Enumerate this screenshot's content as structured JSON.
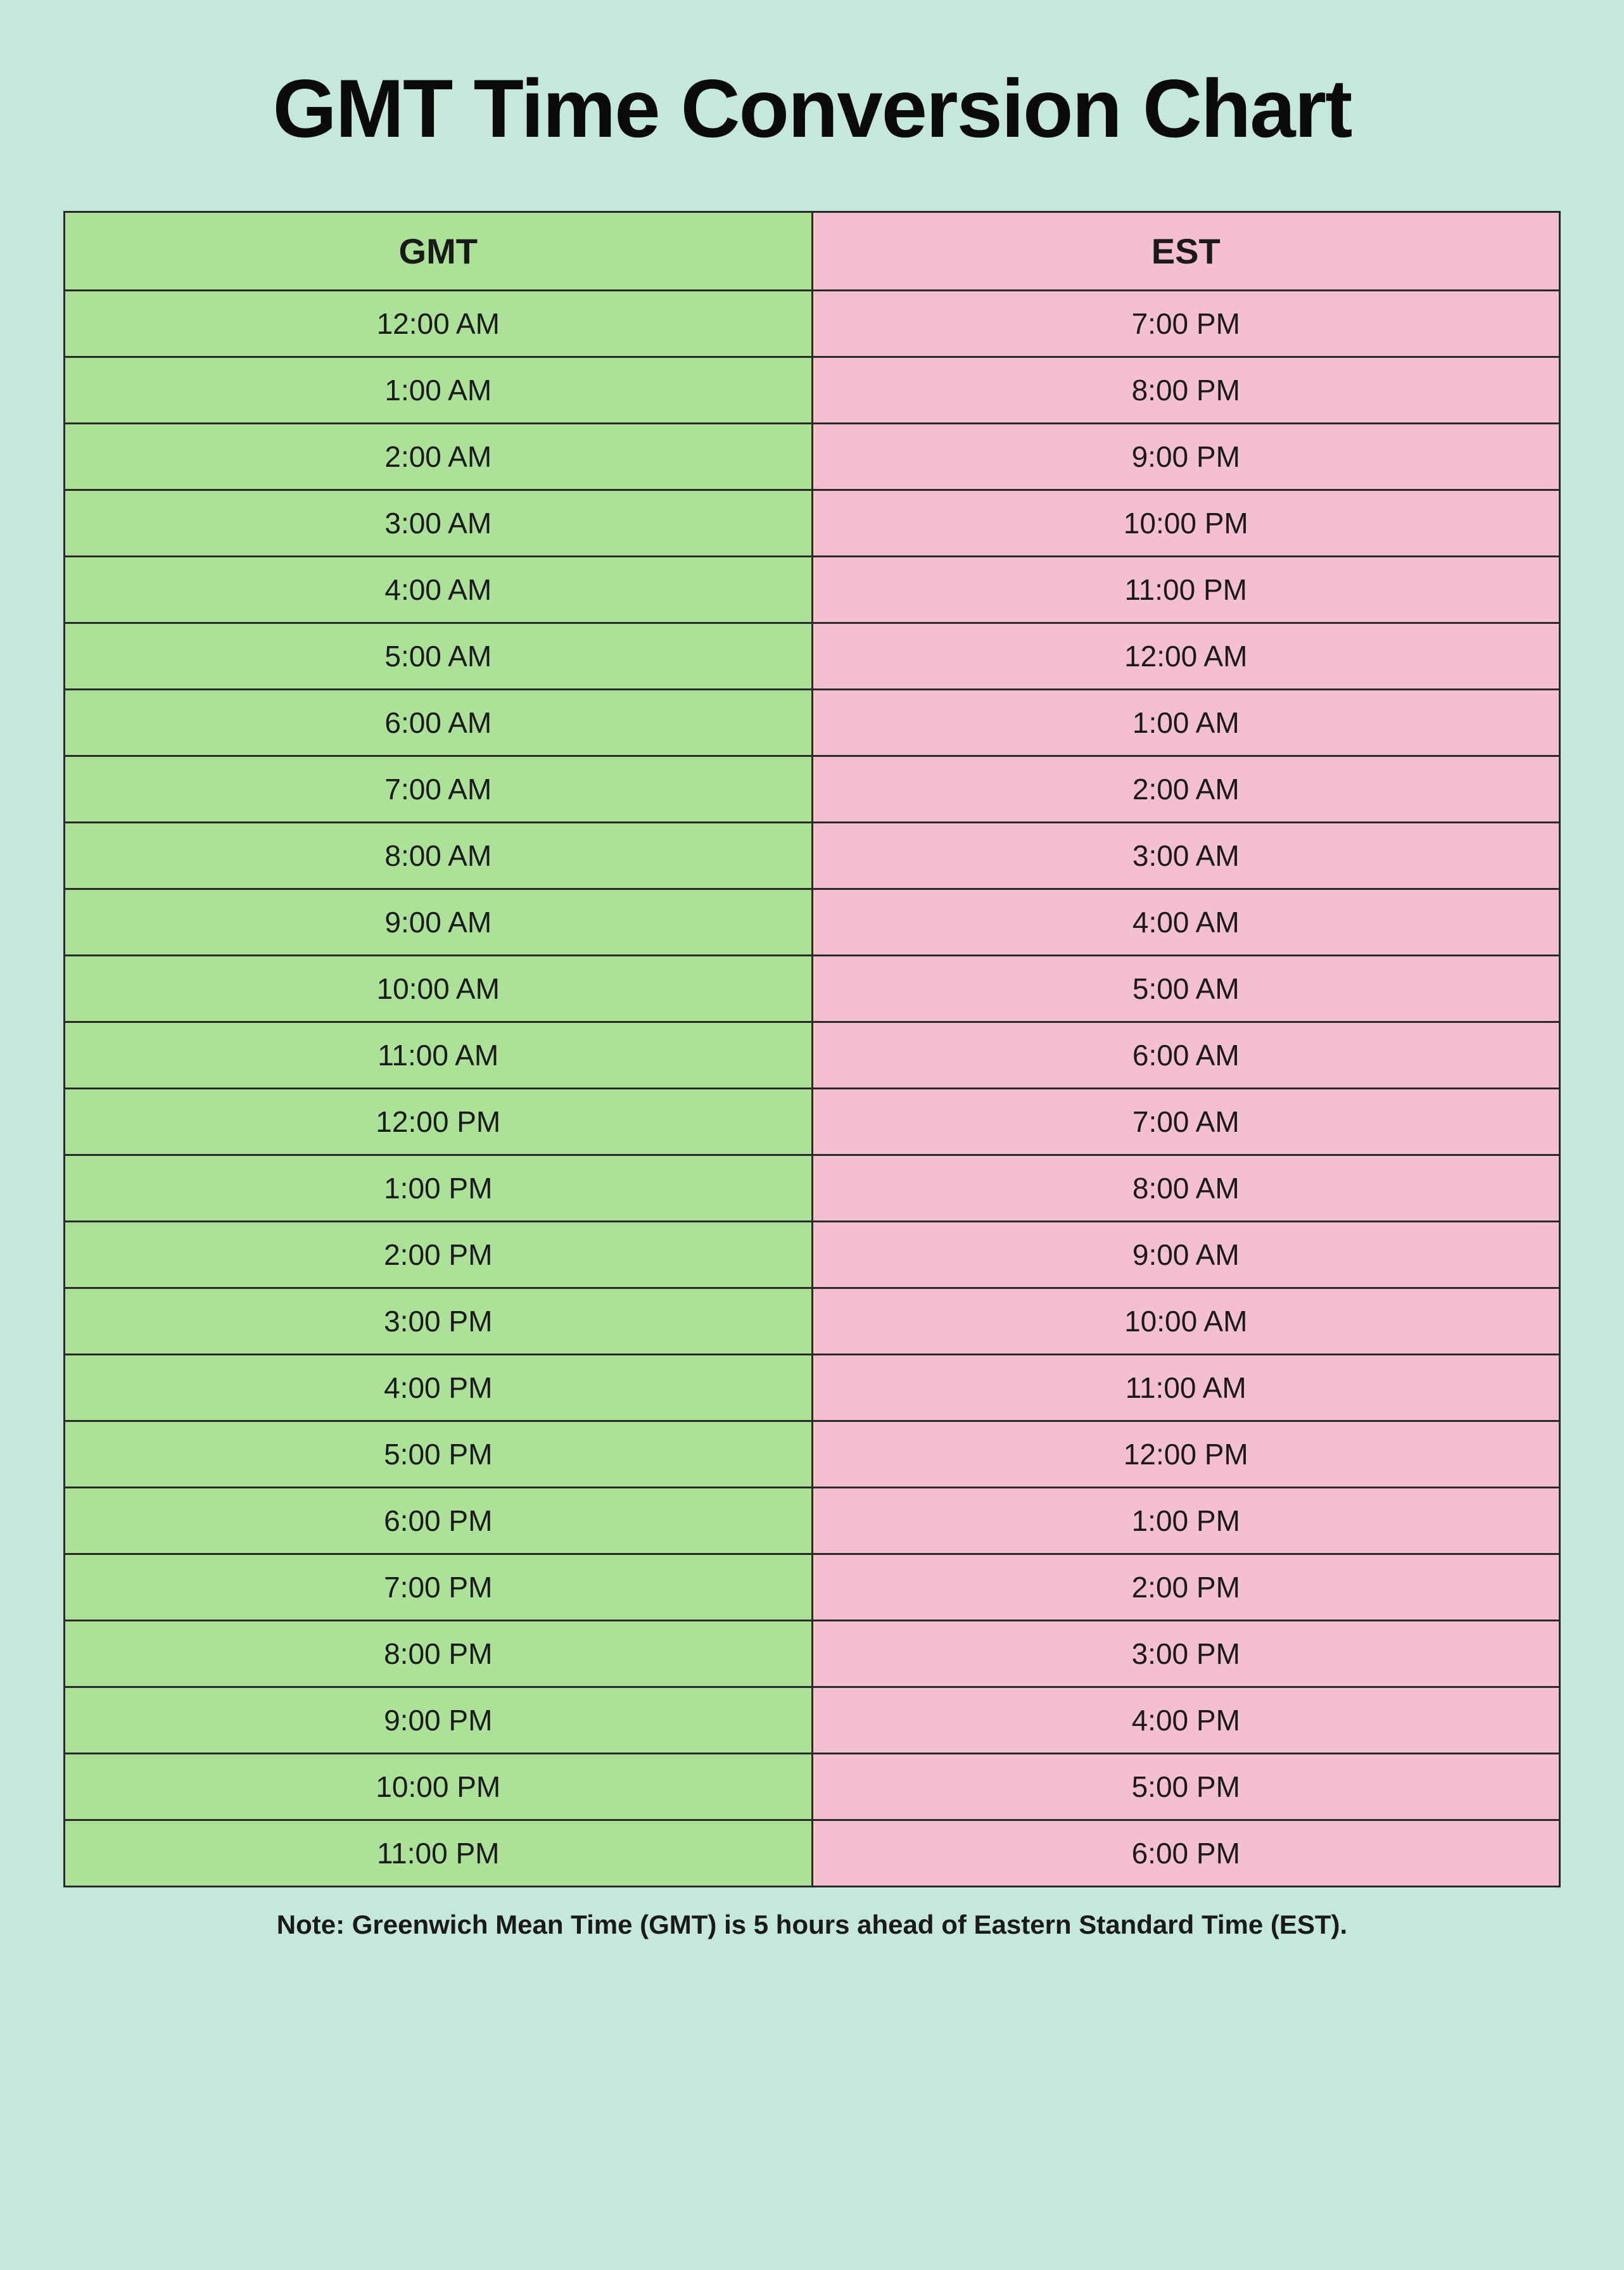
{
  "title": "GMT Time Conversion Chart",
  "table": {
    "type": "table",
    "columns": [
      "GMT",
      "EST"
    ],
    "column_colors": [
      "#ace297",
      "#f4c0d0"
    ],
    "border_color": "#2a2a2a",
    "header_fontsize": 56,
    "header_fontweight": 700,
    "cell_fontsize": 46,
    "cell_fontweight": 400,
    "rows": [
      {
        "gmt": "12:00 AM",
        "est": "7:00 PM"
      },
      {
        "gmt": "1:00 AM",
        "est": "8:00 PM"
      },
      {
        "gmt": "2:00 AM",
        "est": "9:00 PM"
      },
      {
        "gmt": "3:00 AM",
        "est": "10:00 PM"
      },
      {
        "gmt": "4:00 AM",
        "est": "11:00 PM"
      },
      {
        "gmt": "5:00 AM",
        "est": "12:00 AM"
      },
      {
        "gmt": "6:00 AM",
        "est": "1:00 AM"
      },
      {
        "gmt": "7:00 AM",
        "est": "2:00 AM"
      },
      {
        "gmt": "8:00 AM",
        "est": "3:00 AM"
      },
      {
        "gmt": "9:00 AM",
        "est": "4:00 AM"
      },
      {
        "gmt": "10:00 AM",
        "est": "5:00 AM"
      },
      {
        "gmt": "11:00 AM",
        "est": "6:00 AM"
      },
      {
        "gmt": "12:00 PM",
        "est": "7:00 AM"
      },
      {
        "gmt": "1:00 PM",
        "est": "8:00 AM"
      },
      {
        "gmt": "2:00 PM",
        "est": "9:00 AM"
      },
      {
        "gmt": "3:00 PM",
        "est": "10:00 AM"
      },
      {
        "gmt": "4:00 PM",
        "est": "11:00 AM"
      },
      {
        "gmt": "5:00 PM",
        "est": "12:00 PM"
      },
      {
        "gmt": "6:00 PM",
        "est": "1:00 PM"
      },
      {
        "gmt": "7:00 PM",
        "est": "2:00 PM"
      },
      {
        "gmt": "8:00 PM",
        "est": "3:00 PM"
      },
      {
        "gmt": "9:00 PM",
        "est": "4:00 PM"
      },
      {
        "gmt": "10:00 PM",
        "est": "5:00 PM"
      },
      {
        "gmt": "11:00 PM",
        "est": "6:00 PM"
      }
    ]
  },
  "note": "Note: Greenwich Mean Time (GMT) is 5 hours ahead of Eastern Standard Time (EST).",
  "colors": {
    "background": "#c5e8dc",
    "gmt_column": "#ace297",
    "est_column": "#f4c0d0",
    "border": "#2a2a2a",
    "text": "#1a1a1a"
  },
  "typography": {
    "title_fontsize": 130,
    "title_fontweight": 800,
    "note_fontsize": 42,
    "note_fontweight": 600
  }
}
